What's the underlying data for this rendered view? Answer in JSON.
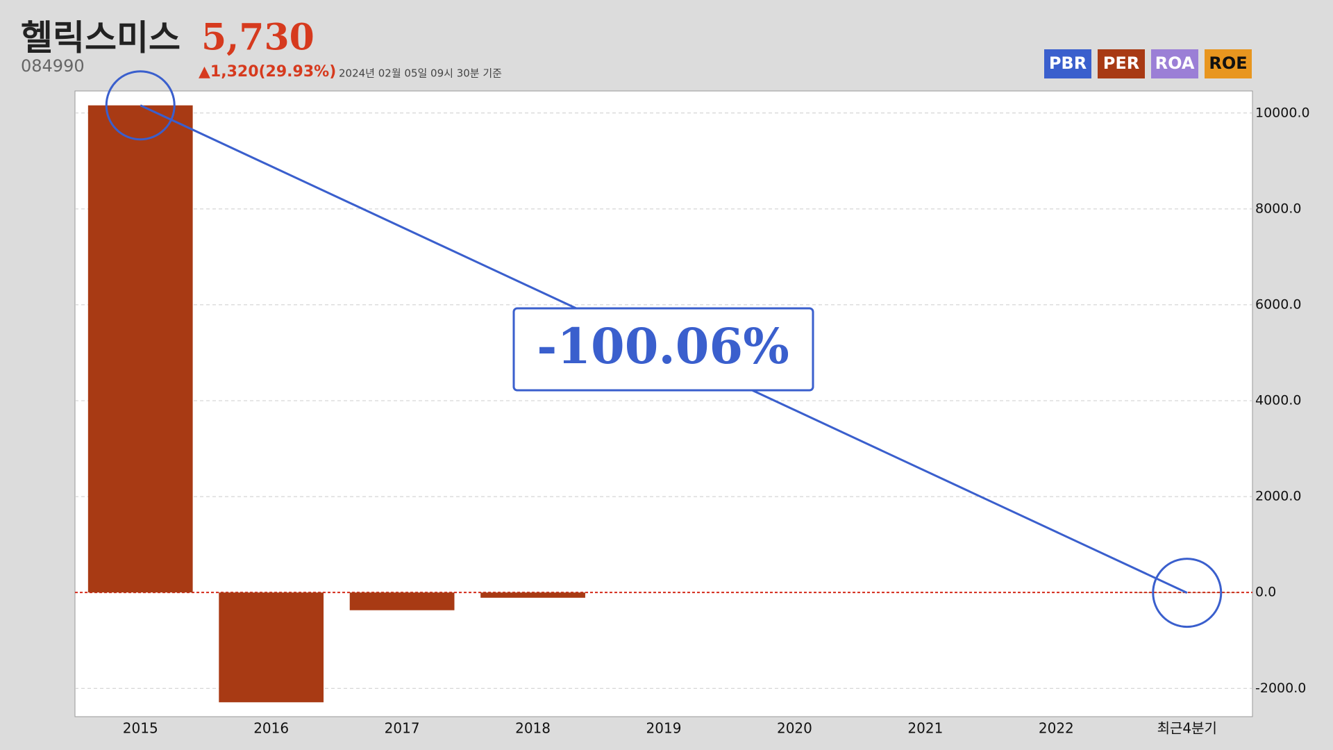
{
  "chart_data": {
    "type": "bar",
    "title": "헬릭스미스",
    "price": "5,730",
    "code": "084990",
    "change": "▲1,320(29.93%)",
    "timestamp": "2024년 02월 05일 09시 30분 기준",
    "tabs": [
      {
        "name": "PBR",
        "color": "#3a5fcd"
      },
      {
        "name": "PER",
        "color": "#a83a14"
      },
      {
        "name": "ROA",
        "color": "#9b7fd6"
      },
      {
        "name": "ROE",
        "color": "#e8961f"
      }
    ],
    "categories": [
      "2015",
      "2016",
      "2017",
      "2018",
      "2019",
      "2020",
      "2021",
      "2022",
      "최근4분기"
    ],
    "values": [
      10160,
      -2290,
      -370,
      -110,
      0,
      0,
      0,
      0,
      -6
    ],
    "color": "#a83a14",
    "annotation": "-100.06%",
    "ylim": [
      -2590,
      10460
    ],
    "yticks": [
      {
        "value": -2000,
        "label": "-2000.0"
      },
      {
        "value": 0,
        "label": "0.0"
      },
      {
        "value": 2000,
        "label": "2000.0"
      },
      {
        "value": 4000,
        "label": "4000.0"
      },
      {
        "value": 6000,
        "label": "6000.0"
      },
      {
        "value": 8000,
        "label": "8000.0"
      },
      {
        "value": 10000,
        "label": "10000.0"
      }
    ],
    "grid": true
  }
}
